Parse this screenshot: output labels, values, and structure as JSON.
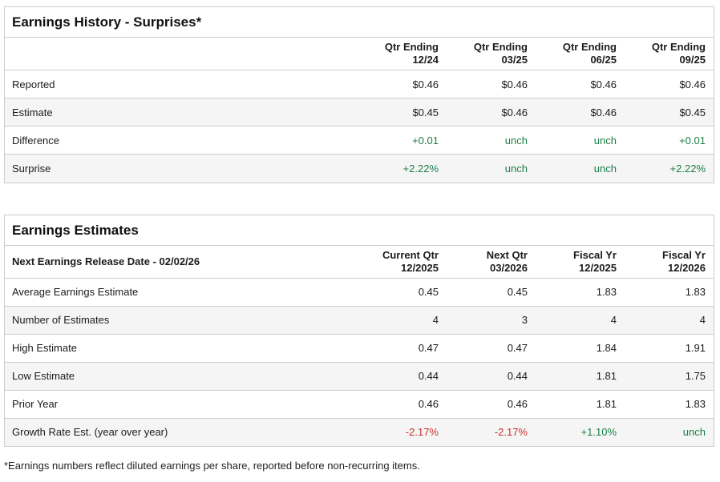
{
  "colors": {
    "green": "#1a7e45",
    "red": "#c9302c",
    "border": "#cccccc",
    "alt_row_bg": "#f5f5f5"
  },
  "earnings_history": {
    "title": "Earnings History - Surprises*",
    "columns": [
      {
        "line1": "Qtr Ending",
        "line2": "12/24"
      },
      {
        "line1": "Qtr Ending",
        "line2": "03/25"
      },
      {
        "line1": "Qtr Ending",
        "line2": "06/25"
      },
      {
        "line1": "Qtr Ending",
        "line2": "09/25"
      }
    ],
    "rows": {
      "reported": {
        "label": "Reported",
        "values": [
          "$0.46",
          "$0.46",
          "$0.46",
          "$0.46"
        ]
      },
      "estimate": {
        "label": "Estimate",
        "values": [
          "$0.45",
          "$0.46",
          "$0.46",
          "$0.45"
        ]
      },
      "difference": {
        "label": "Difference",
        "values": [
          "+0.01",
          "unch",
          "unch",
          "+0.01"
        ]
      },
      "surprise": {
        "label": "Surprise",
        "values": [
          "+2.22%",
          "unch",
          "unch",
          "+2.22%"
        ]
      }
    }
  },
  "earnings_estimates": {
    "title": "Earnings Estimates",
    "header_label": "Next Earnings Release Date - 02/02/26",
    "columns": [
      {
        "line1": "Current Qtr",
        "line2": "12/2025"
      },
      {
        "line1": "Next Qtr",
        "line2": "03/2026"
      },
      {
        "line1": "Fiscal Yr",
        "line2": "12/2025"
      },
      {
        "line1": "Fiscal Yr",
        "line2": "12/2026"
      }
    ],
    "rows": {
      "average": {
        "label": "Average Earnings Estimate",
        "values": [
          "0.45",
          "0.45",
          "1.83",
          "1.83"
        ]
      },
      "number": {
        "label": "Number of Estimates",
        "values": [
          "4",
          "3",
          "4",
          "4"
        ]
      },
      "high": {
        "label": "High Estimate",
        "values": [
          "0.47",
          "0.47",
          "1.84",
          "1.91"
        ]
      },
      "low": {
        "label": "Low Estimate",
        "values": [
          "0.44",
          "0.44",
          "1.81",
          "1.75"
        ]
      },
      "prior": {
        "label": "Prior Year",
        "values": [
          "0.46",
          "0.46",
          "1.81",
          "1.83"
        ]
      },
      "growth": {
        "label": "Growth Rate Est. (year over year)",
        "values": [
          "-2.17%",
          "-2.17%",
          "+1.10%",
          "unch"
        ]
      }
    }
  },
  "footnote": "*Earnings numbers reflect diluted earnings per share, reported before non-recurring items."
}
